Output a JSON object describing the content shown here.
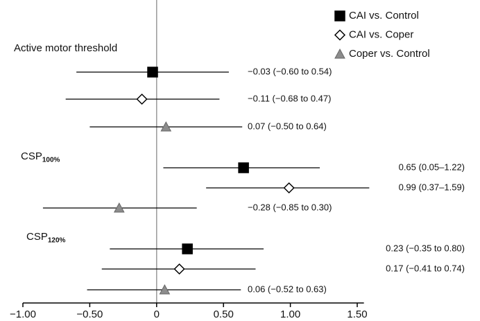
{
  "chart_data": {
    "type": "forest",
    "groups": [
      {
        "label": "Active motor threshold"
      },
      {
        "label": "CSP",
        "subscript": "100%"
      },
      {
        "label": "CSP",
        "subscript": "120%"
      }
    ],
    "series": [
      {
        "name": "CAI vs. Control",
        "marker": "square",
        "color": "#000000",
        "values": [
          -0.03,
          0.65,
          0.23
        ],
        "lower": [
          -0.6,
          0.05,
          -0.35
        ],
        "upper": [
          0.54,
          1.22,
          0.8
        ],
        "value_labels": [
          "−0.03 (−0.60 to 0.54)",
          "0.65 (0.05–1.22)",
          "0.23 (−0.35 to 0.80)"
        ]
      },
      {
        "name": "CAI vs. Coper",
        "marker": "diamond",
        "color": "#ffffff",
        "values": [
          -0.11,
          0.99,
          0.17
        ],
        "lower": [
          -0.68,
          0.37,
          -0.41
        ],
        "upper": [
          0.47,
          1.59,
          0.74
        ],
        "value_labels": [
          "−0.11 (−0.68 to 0.47)",
          "0.99 (0.37–1.59)",
          "0.17 (−0.41 to 0.74)"
        ]
      },
      {
        "name": "Coper vs. Control",
        "marker": "triangle",
        "color": "#8c8c8c",
        "values": [
          0.07,
          -0.28,
          0.06
        ],
        "lower": [
          -0.5,
          -0.85,
          -0.52
        ],
        "upper": [
          0.64,
          0.3,
          0.63
        ],
        "value_labels": [
          "0.07 (−0.50 to 0.64)",
          "−0.28 (−0.85 to 0.30)",
          "0.06 (−0.52 to 0.63)"
        ]
      }
    ],
    "xlim": [
      -1,
      1.55
    ],
    "xticks": [
      {
        "value": -1,
        "label": "−1.00"
      },
      {
        "value": -0.5,
        "label": "−0.50"
      },
      0,
      {
        "value": 0.5,
        "label": "0.50"
      },
      {
        "value": 1,
        "label": "1.00"
      },
      {
        "value": 1.5,
        "label": "1.50"
      }
    ]
  }
}
